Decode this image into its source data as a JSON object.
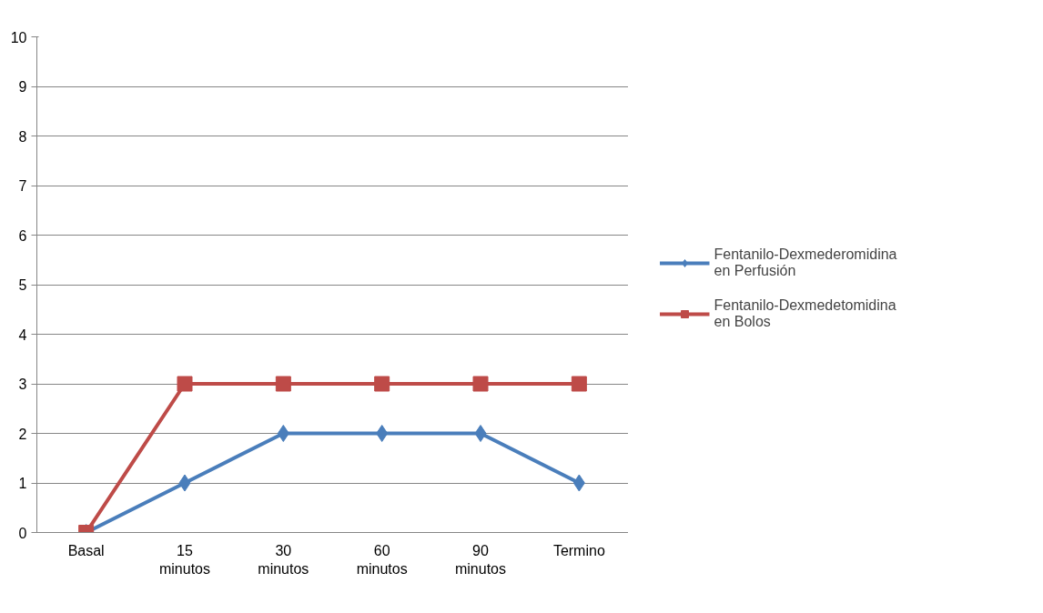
{
  "chart_data": {
    "type": "line",
    "categories": [
      "Basal",
      "15 minutos",
      "30 minutos",
      "60 minutos",
      "90 minutos",
      "Termino"
    ],
    "series": [
      {
        "name": "Fentanilo-Dexmederomidina en Perfusión",
        "color": "#4a7ebb",
        "marker": "diamond",
        "values": [
          0,
          1,
          2,
          2,
          2,
          1
        ]
      },
      {
        "name": "Fentanilo-Dexmedetomidina en Bolos",
        "color": "#be4b48",
        "marker": "square",
        "values": [
          0,
          3,
          3,
          3,
          3,
          3
        ]
      }
    ],
    "ylim": [
      0,
      10
    ],
    "yticks": [
      0,
      1,
      2,
      3,
      4,
      5,
      6,
      7,
      8,
      9,
      10
    ],
    "grid": "y",
    "legend": "right",
    "line_style": "solid"
  }
}
